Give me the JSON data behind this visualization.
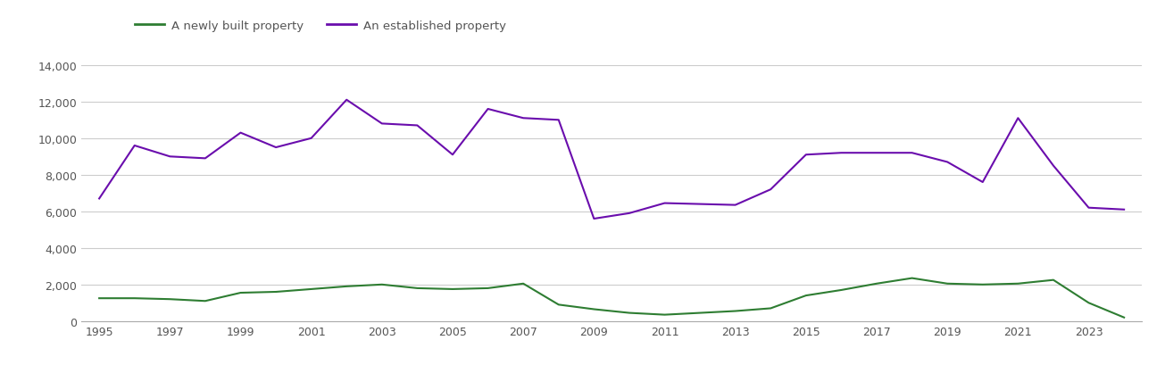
{
  "years": [
    1995,
    1996,
    1997,
    1998,
    1999,
    2000,
    2001,
    2002,
    2003,
    2004,
    2005,
    2006,
    2007,
    2008,
    2009,
    2010,
    2011,
    2012,
    2013,
    2014,
    2015,
    2016,
    2017,
    2018,
    2019,
    2020,
    2021,
    2022,
    2023,
    2024
  ],
  "new_build": [
    1250,
    1250,
    1200,
    1100,
    1550,
    1600,
    1750,
    1900,
    2000,
    1800,
    1750,
    1800,
    2050,
    900,
    650,
    450,
    350,
    450,
    550,
    700,
    1400,
    1700,
    2050,
    2350,
    2050,
    2000,
    2050,
    2250,
    1000,
    200
  ],
  "established": [
    6700,
    9600,
    9000,
    8900,
    10300,
    9500,
    10000,
    12100,
    10800,
    10700,
    9100,
    11600,
    11100,
    11000,
    5600,
    5900,
    6450,
    6400,
    6350,
    7200,
    9100,
    9200,
    9200,
    9200,
    8700,
    7600,
    11100,
    8500,
    6200,
    6100
  ],
  "new_build_color": "#2e7d32",
  "established_color": "#6a0dad",
  "new_build_label": "A newly built property",
  "established_label": "An established property",
  "ylim": [
    0,
    14000
  ],
  "yticks": [
    0,
    2000,
    4000,
    6000,
    8000,
    10000,
    12000,
    14000
  ],
  "xticks": [
    1995,
    1997,
    1999,
    2001,
    2003,
    2005,
    2007,
    2009,
    2011,
    2013,
    2015,
    2017,
    2019,
    2021,
    2023
  ],
  "xlim_left": 1994.5,
  "xlim_right": 2024.5,
  "background_color": "#ffffff",
  "grid_color": "#cccccc",
  "tick_label_color": "#555555",
  "figsize": [
    13.05,
    4.1
  ],
  "dpi": 100
}
